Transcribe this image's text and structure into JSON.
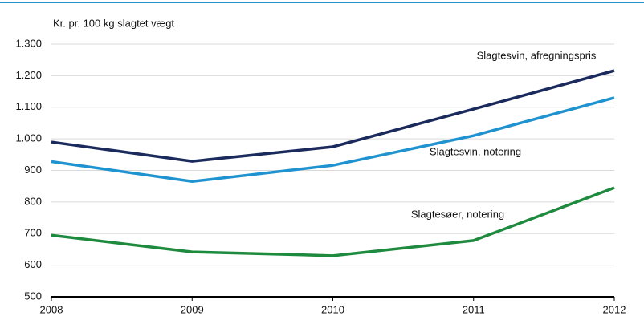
{
  "chart_data": {
    "type": "line",
    "y_axis_label": "Kr. pr. 100 kg slagtet vægt",
    "x": [
      2008,
      2009,
      2010,
      2011,
      2012
    ],
    "series": [
      {
        "name": "Slagtesvin, afregningspris",
        "color": "#1b2a5c",
        "values": [
          990,
          929,
          975,
          1094,
          1216
        ]
      },
      {
        "name": "Slagtesvin, notering",
        "color": "#1f93d0",
        "values": [
          928,
          865,
          916,
          1010,
          1130
        ]
      },
      {
        "name": "Slagtesøer, notering",
        "color": "#1e8a3e",
        "values": [
          695,
          642,
          630,
          678,
          845
        ]
      }
    ],
    "xlim": [
      2008,
      2012
    ],
    "xticks": [
      2008,
      2009,
      2010,
      2011,
      2012
    ],
    "ylim": [
      500,
      1300
    ],
    "yticks": [
      500,
      600,
      700,
      800,
      900,
      {
        "value": 1000,
        "label": "1.000"
      },
      {
        "value": 1100,
        "label": "1.100"
      },
      {
        "value": 1200,
        "label": "1.200"
      },
      {
        "value": 1300,
        "label": "1.300"
      }
    ],
    "grid": true
  }
}
